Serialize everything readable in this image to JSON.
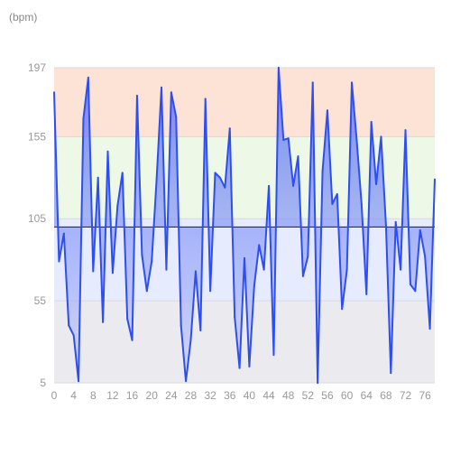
{
  "chart_data": {
    "type": "line",
    "ylabel": "(bpm)",
    "ylim": [
      5,
      197
    ],
    "y_ticks": [
      5,
      55,
      105,
      155,
      197
    ],
    "x_ticks": [
      0,
      4,
      8,
      12,
      16,
      20,
      24,
      28,
      32,
      36,
      40,
      44,
      48,
      52,
      56,
      60,
      64,
      68,
      72,
      76
    ],
    "baseline": 100,
    "bands": [
      {
        "from": 155,
        "to": 197,
        "color": "#fde3d5"
      },
      {
        "from": 105,
        "to": 155,
        "color": "#edf8e6"
      },
      {
        "from": 55,
        "to": 105,
        "color": "#e6ecfd"
      },
      {
        "from": 5,
        "to": 55,
        "color": "#ebebef"
      }
    ],
    "series": [
      {
        "color": "#2f4ef2",
        "x": [
          0,
          1,
          2,
          3,
          4,
          5,
          6,
          7,
          8,
          9,
          10,
          11,
          12,
          13,
          14,
          15,
          16,
          17,
          18,
          19,
          20,
          21,
          22,
          23,
          24,
          25,
          26,
          27,
          28,
          29,
          30,
          31,
          32,
          33,
          34,
          35,
          36,
          37,
          38,
          39,
          40,
          41,
          42,
          43,
          44,
          45,
          46,
          47,
          48,
          49,
          50,
          51,
          52,
          53,
          54,
          55,
          56,
          57,
          58,
          59,
          60,
          61,
          62,
          63,
          64,
          65,
          66,
          67,
          68,
          69,
          70,
          71,
          72,
          73,
          74,
          75,
          76,
          77,
          78
        ],
        "values": [
          182,
          79,
          96,
          40,
          34,
          6,
          166,
          191,
          73,
          130,
          42,
          146,
          72,
          113,
          133,
          44,
          31,
          180,
          83,
          61,
          79,
          129,
          185,
          74,
          182,
          167,
          40,
          6,
          31,
          73,
          37,
          178,
          61,
          133,
          130,
          124,
          160,
          45,
          14,
          81,
          15,
          64,
          89,
          74,
          125,
          22,
          197,
          153,
          154,
          125,
          143,
          70,
          82,
          188,
          5,
          134,
          171,
          114,
          120,
          50,
          74,
          188,
          153,
          114,
          59,
          164,
          126,
          155,
          101,
          11,
          103,
          74,
          159,
          65,
          61,
          98,
          82,
          38,
          129
        ]
      }
    ]
  }
}
